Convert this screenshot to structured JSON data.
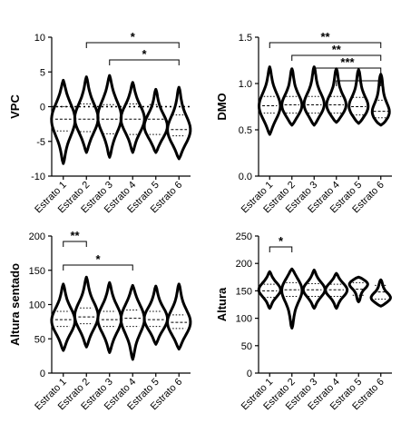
{
  "chart_data": [
    {
      "type": "violin",
      "ylabel": "VPC",
      "ylim": [
        -10,
        10
      ],
      "yticks": [
        10,
        5,
        0,
        -5,
        -10
      ],
      "zero_line": true,
      "categories": [
        "Estrato 1",
        "Estrato 2",
        "Estrato 3",
        "Estrato 4",
        "Estrato 5",
        "Estrato 6"
      ],
      "violins": [
        {
          "min": -8.2,
          "q1": -3.5,
          "median": -1.8,
          "q3": 0.0,
          "max": 3.8,
          "mode": -1.8
        },
        {
          "min": -6.6,
          "q1": -3.6,
          "median": -1.8,
          "q3": 0.4,
          "max": 4.3,
          "mode": -1.8
        },
        {
          "min": -7.3,
          "q1": -3.9,
          "median": -1.8,
          "q3": 0.3,
          "max": 4.5,
          "mode": -1.5
        },
        {
          "min": -6.6,
          "q1": -4.0,
          "median": -1.8,
          "q3": 0.4,
          "max": 3.5,
          "mode": -1.8
        },
        {
          "min": -6.6,
          "q1": -4.0,
          "median": -1.8,
          "q3": 0.3,
          "max": 2.5,
          "mode": -3.0
        },
        {
          "min": -7.5,
          "q1": -4.2,
          "median": -3.3,
          "q3": -1.2,
          "max": 2.8,
          "mode": -3.6
        }
      ],
      "comparisons": [
        {
          "from": 2,
          "to": 6,
          "label": "*"
        },
        {
          "from": 3,
          "to": 6,
          "label": "*"
        }
      ]
    },
    {
      "type": "violin",
      "ylabel": "DMO",
      "ylim": [
        0.0,
        1.5
      ],
      "yticks": [
        "1.5",
        "1.0",
        "0.5",
        "0.0"
      ],
      "zero_line": false,
      "categories": [
        "Estrato 1",
        "Estrato 2",
        "Estrato 3",
        "Estrato 4",
        "Estrato 5",
        "Estrato 6"
      ],
      "violins": [
        {
          "min": 0.45,
          "q1": 0.68,
          "median": 0.76,
          "q3": 0.86,
          "max": 1.18,
          "mode": 0.74
        },
        {
          "min": 0.55,
          "q1": 0.68,
          "median": 0.77,
          "q3": 0.86,
          "max": 1.16,
          "mode": 0.74
        },
        {
          "min": 0.55,
          "q1": 0.68,
          "median": 0.77,
          "q3": 0.86,
          "max": 1.18,
          "mode": 0.75
        },
        {
          "min": 0.58,
          "q1": 0.68,
          "median": 0.77,
          "q3": 0.86,
          "max": 1.16,
          "mode": 0.74
        },
        {
          "min": 0.57,
          "q1": 0.66,
          "median": 0.75,
          "q3": 0.85,
          "max": 1.15,
          "mode": 0.72
        },
        {
          "min": 0.55,
          "q1": 0.63,
          "median": 0.7,
          "q3": 0.82,
          "max": 1.1,
          "mode": 0.65
        }
      ],
      "comparisons": [
        {
          "from": 1,
          "to": 6,
          "label": "**"
        },
        {
          "from": 2,
          "to": 6,
          "label": "**"
        },
        {
          "from": 3,
          "to": 6,
          "label": "***"
        },
        {
          "from": 4,
          "to": 6,
          "label": "*"
        }
      ]
    },
    {
      "type": "violin",
      "ylabel": "Altura sentado",
      "ylim": [
        0,
        200
      ],
      "yticks": [
        200,
        150,
        100,
        50,
        0
      ],
      "zero_line": false,
      "categories": [
        "Estrato 1",
        "Estrato 2",
        "Estrato 3",
        "Estrato 4",
        "Estrato 5",
        "Estrato 6"
      ],
      "violins": [
        {
          "min": 33,
          "q1": 68,
          "median": 78,
          "q3": 90,
          "max": 130,
          "mode": 75
        },
        {
          "min": 38,
          "q1": 72,
          "median": 82,
          "q3": 95,
          "max": 140,
          "mode": 82
        },
        {
          "min": 30,
          "q1": 68,
          "median": 78,
          "q3": 90,
          "max": 132,
          "mode": 78
        },
        {
          "min": 20,
          "q1": 68,
          "median": 80,
          "q3": 92,
          "max": 128,
          "mode": 80
        },
        {
          "min": 42,
          "q1": 68,
          "median": 78,
          "q3": 90,
          "max": 127,
          "mode": 78
        },
        {
          "min": 35,
          "q1": 65,
          "median": 74,
          "q3": 85,
          "max": 130,
          "mode": 72
        }
      ],
      "comparisons": [
        {
          "from": 1,
          "to": 2,
          "label": "**"
        },
        {
          "from": 1,
          "to": 4,
          "label": "*"
        }
      ]
    },
    {
      "type": "violin",
      "ylabel": "Altura",
      "ylim": [
        0,
        250
      ],
      "yticks": [
        250,
        200,
        150,
        100,
        50,
        0
      ],
      "zero_line": false,
      "categories": [
        "Estrato 1",
        "Estrato 2",
        "Estrato 3",
        "Estrato 4",
        "Estrato 5",
        "Estrato 6"
      ],
      "violins": [
        {
          "min": 118,
          "q1": 138,
          "median": 150,
          "q3": 162,
          "max": 185,
          "mode": 152
        },
        {
          "min": 82,
          "q1": 140,
          "median": 152,
          "q3": 165,
          "max": 190,
          "mode": 155
        },
        {
          "min": 118,
          "q1": 140,
          "median": 152,
          "q3": 163,
          "max": 188,
          "mode": 152
        },
        {
          "min": 118,
          "q1": 140,
          "median": 152,
          "q3": 162,
          "max": 182,
          "mode": 152
        },
        {
          "min": 130,
          "q1": 142,
          "median": 153,
          "q3": 165,
          "max": 175,
          "mode": 165
        },
        {
          "min": 122,
          "q1": 135,
          "median": 148,
          "q3": 160,
          "max": 170,
          "mode": 135
        }
      ],
      "comparisons": [
        {
          "from": 1,
          "to": 2,
          "label": "*"
        }
      ]
    }
  ]
}
